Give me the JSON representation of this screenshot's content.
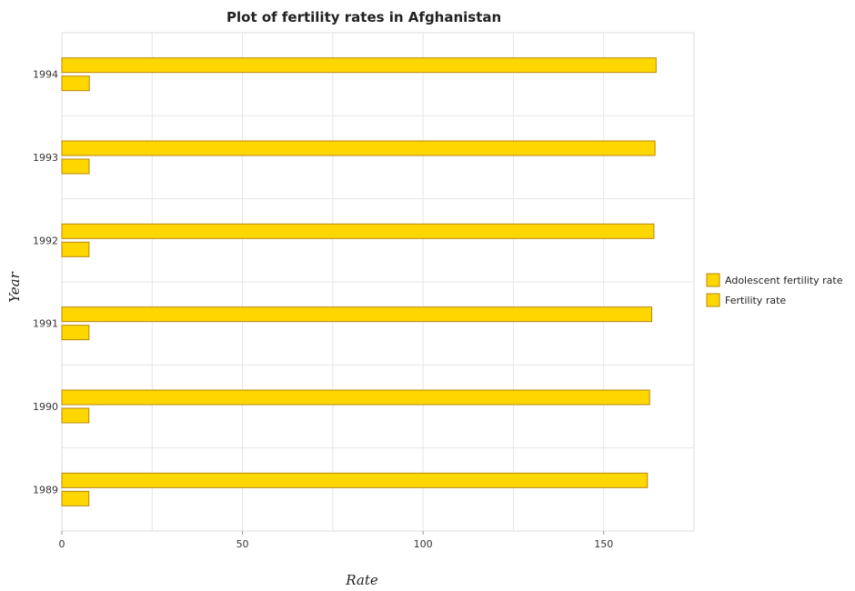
{
  "chart_data": {
    "type": "bar",
    "orientation": "horizontal",
    "title": "Plot of fertility rates in Afghanistan",
    "xlabel": "Rate",
    "ylabel": "Year",
    "categories": [
      "1989",
      "1990",
      "1991",
      "1992",
      "1993",
      "1994"
    ],
    "xlim": [
      0,
      175
    ],
    "xticks": [
      0,
      50,
      100,
      150
    ],
    "grid": true,
    "legend_position": "right",
    "series": [
      {
        "name": "Adolescent fertility rate",
        "color": "#ffd700",
        "edge": "#b8860b",
        "values": [
          162.1,
          162.7,
          163.3,
          163.9,
          164.2,
          164.5
        ]
      },
      {
        "name": "Fertility rate",
        "color": "#ffd700",
        "edge": "#b8860b",
        "values": [
          7.47,
          7.48,
          7.5,
          7.52,
          7.55,
          7.6
        ]
      }
    ]
  }
}
